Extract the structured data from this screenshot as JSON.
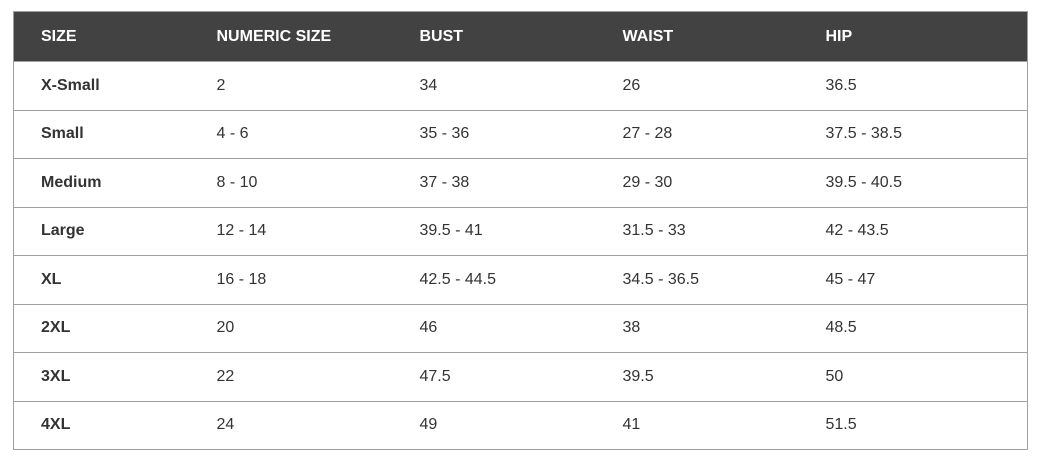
{
  "table": {
    "headers": [
      "SIZE",
      "NUMERIC SIZE",
      "BUST",
      "WAIST",
      "HIP"
    ],
    "rows": [
      [
        "X-Small",
        "2",
        "34",
        "26",
        "36.5"
      ],
      [
        "Small",
        "4 - 6",
        "35 - 36",
        "27 - 28",
        "37.5 - 38.5"
      ],
      [
        "Medium",
        "8 - 10",
        "37 - 38",
        "29 - 30",
        "39.5 - 40.5"
      ],
      [
        "Large",
        "12 - 14",
        "39.5 - 41",
        "31.5 - 33",
        "42 - 43.5"
      ],
      [
        "XL",
        "16 - 18",
        "42.5 - 44.5",
        "34.5 - 36.5",
        "45 - 47"
      ],
      [
        "2XL",
        "20",
        "46",
        "38",
        "48.5"
      ],
      [
        "3XL",
        "22",
        "47.5",
        "39.5",
        "50"
      ],
      [
        "4XL",
        "24",
        "49",
        "41",
        "51.5"
      ]
    ]
  },
  "colors": {
    "header_bg": "#424242",
    "header_text": "#ffffff",
    "border": "#a0a0a0"
  }
}
